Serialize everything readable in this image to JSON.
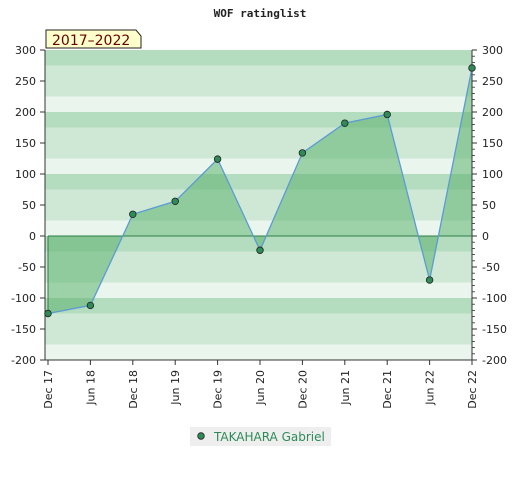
{
  "chart_data": {
    "type": "area",
    "title": "WOF ratinglist",
    "badge": "2017–2022",
    "x": [
      "Dec 17",
      "Jun 18",
      "Dec 18",
      "Jun 19",
      "Dec 19",
      "Jun 20",
      "Dec 20",
      "Jun 21",
      "Dec 21",
      "Jun 22",
      "Dec 22"
    ],
    "series": [
      {
        "name": "TAKAHARA Gabriel",
        "values": [
          -125,
          -112,
          35,
          56,
          124,
          -23,
          134,
          182,
          196,
          -71,
          271
        ]
      }
    ],
    "ylim": [
      -200,
      300
    ],
    "yticks": [
      -200,
      -150,
      -100,
      -50,
      0,
      50,
      100,
      150,
      200,
      250,
      300
    ],
    "grid": true,
    "legend_position": "bottom-center",
    "colors": {
      "line": "#5b9bd5",
      "marker": "#2e8b57",
      "fill": "#5cb270",
      "band_dark": "#b4dcbe",
      "band_mid": "#cfe8d6",
      "band_light": "#eaf5ed",
      "badge_bg": "#ffffcc"
    }
  }
}
